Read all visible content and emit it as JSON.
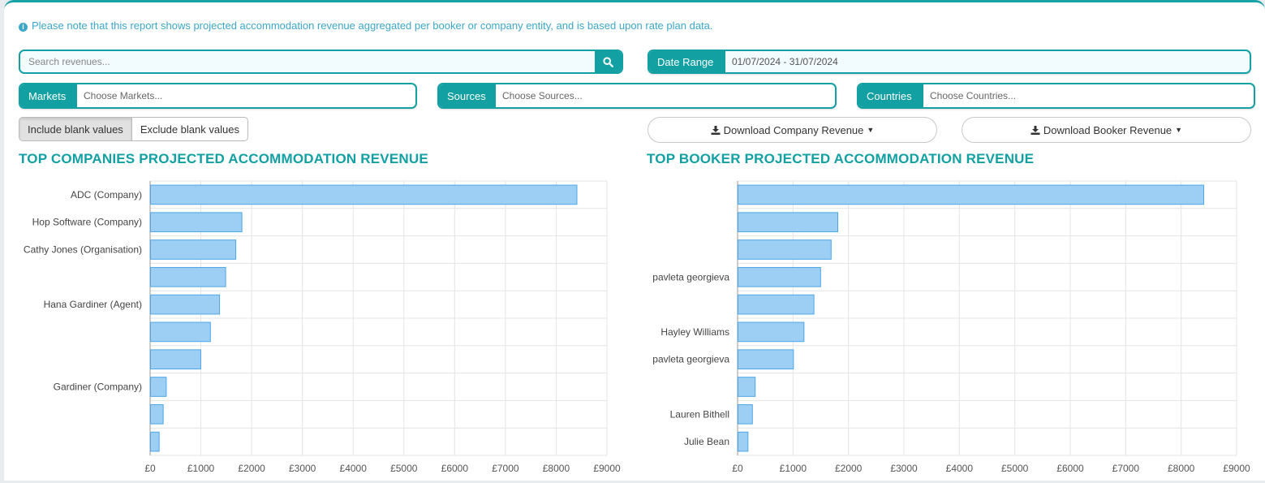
{
  "notice": "Please note that this report shows projected accommodation revenue aggregated per booker or company entity, and is based upon rate plan data.",
  "search": {
    "placeholder": "Search revenues..."
  },
  "date_range": {
    "label": "Date Range",
    "value": "01/07/2024 - 31/07/2024"
  },
  "filters": {
    "markets": {
      "label": "Markets",
      "placeholder": "Choose Markets..."
    },
    "sources": {
      "label": "Sources",
      "placeholder": "Choose Sources..."
    },
    "countries": {
      "label": "Countries",
      "placeholder": "Choose Countries..."
    }
  },
  "blank_toggle": {
    "include": "Include blank values",
    "exclude": "Exclude blank values",
    "selected": "include"
  },
  "downloads": {
    "company": "Download Company Revenue",
    "booker": "Download Booker Revenue"
  },
  "colors": {
    "accent": "#12a0a3",
    "bar_fill": "#9dcff5",
    "bar_stroke": "#4ea6e6"
  },
  "chart_data": [
    {
      "type": "bar",
      "orientation": "horizontal",
      "title": "TOP COMPANIES PROJECTED ACCOMMODATION REVENUE",
      "categories": [
        "ADC (Company)",
        "Hop Software (Company)",
        "Cathy Jones (Organisation)",
        "",
        "Hana Gardiner (Agent)",
        "",
        "",
        "Gardiner (Company)",
        "",
        ""
      ],
      "values": [
        8400,
        1800,
        1680,
        1480,
        1360,
        1180,
        990,
        310,
        250,
        170
      ],
      "xlim": [
        0,
        9000
      ],
      "xticks": [
        0,
        1000,
        2000,
        3000,
        4000,
        5000,
        6000,
        7000,
        8000,
        9000
      ],
      "tick_labels": [
        "£0",
        "£1000",
        "£2000",
        "£3000",
        "£4000",
        "£5000",
        "£6000",
        "£7000",
        "£8000",
        "£9000"
      ],
      "grid": true
    },
    {
      "type": "bar",
      "orientation": "horizontal",
      "title": "TOP BOOKER PROJECTED ACCOMMODATION REVENUE",
      "categories": [
        "",
        "",
        "",
        "pavleta georgieva",
        "",
        "Hayley Williams",
        "pavleta georgieva",
        "",
        "Lauren Bithell",
        "Julie Bean"
      ],
      "values": [
        8400,
        1800,
        1680,
        1490,
        1370,
        1190,
        1000,
        310,
        260,
        180
      ],
      "xlim": [
        0,
        9000
      ],
      "xticks": [
        0,
        1000,
        2000,
        3000,
        4000,
        5000,
        6000,
        7000,
        8000,
        9000
      ],
      "tick_labels": [
        "£0",
        "£1000",
        "£2000",
        "£3000",
        "£4000",
        "£5000",
        "£6000",
        "£7000",
        "£8000",
        "£9000"
      ],
      "grid": true
    }
  ]
}
